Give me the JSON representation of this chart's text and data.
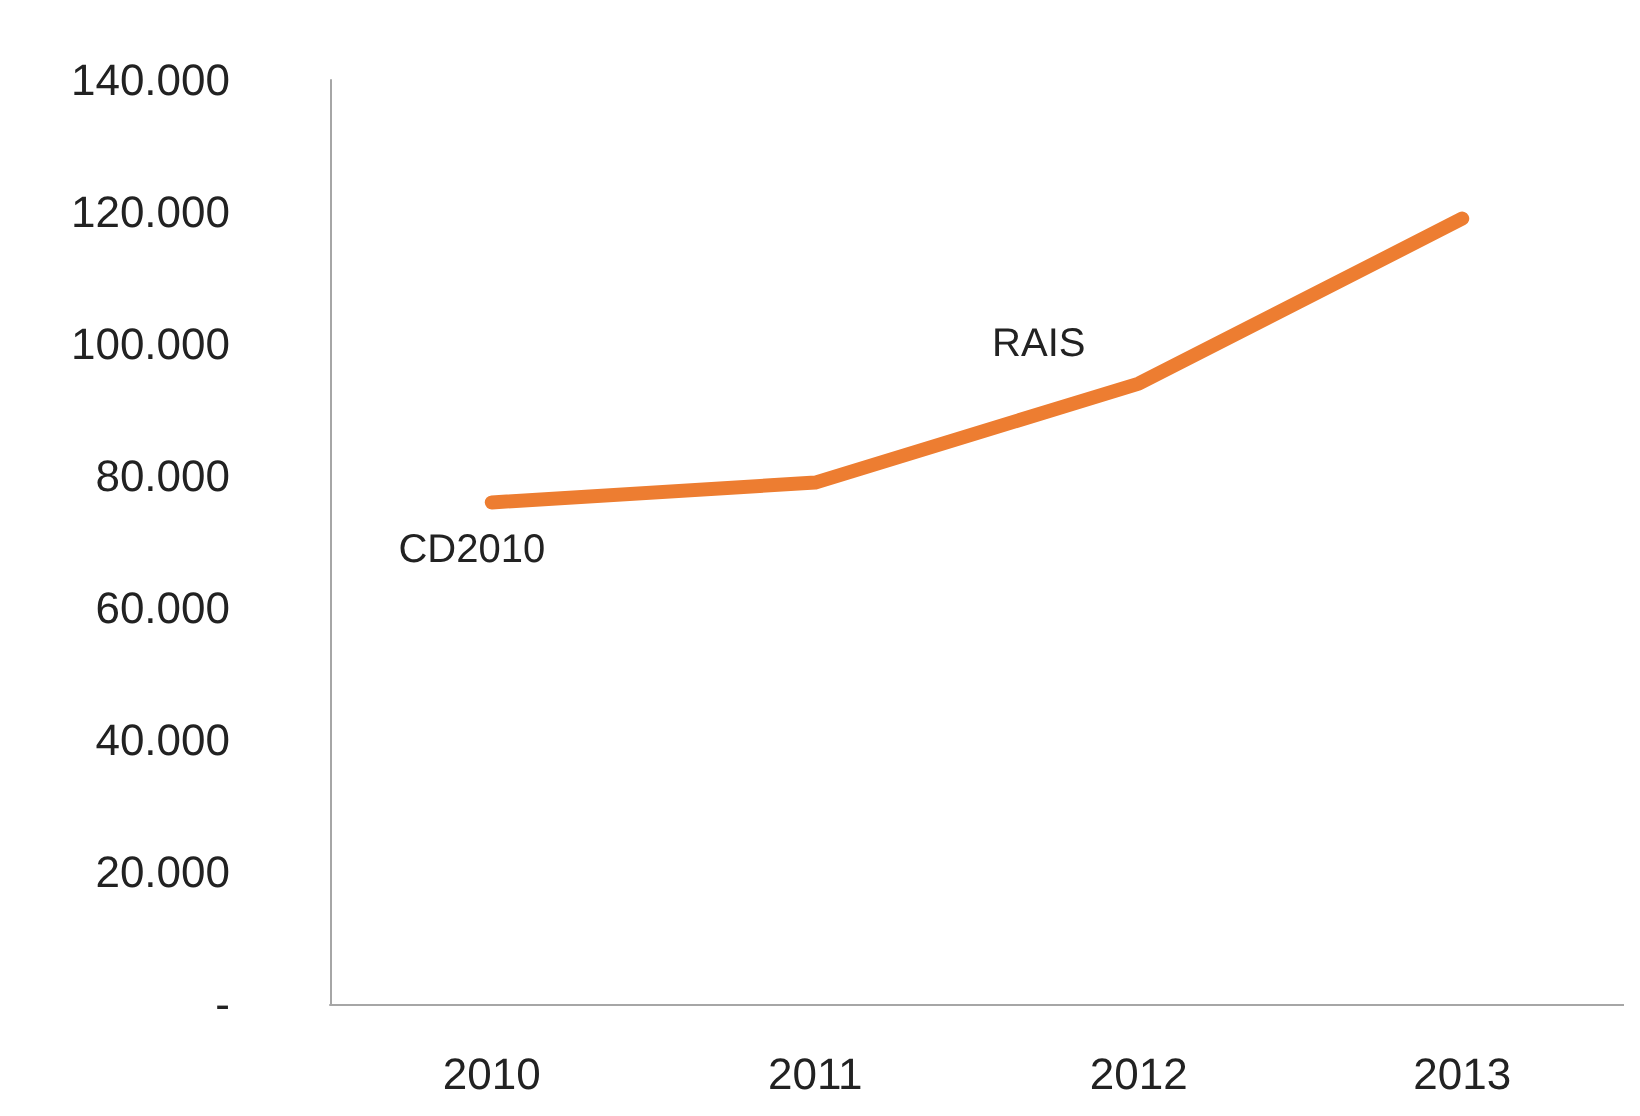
{
  "chart_data": {
    "type": "line",
    "categories": [
      "2010",
      "2011",
      "2012",
      "2013"
    ],
    "series": [
      {
        "color": "#ed7d31",
        "values": [
          76000,
          79000,
          94000,
          119000
        ]
      }
    ],
    "ylim": [
      0,
      140000
    ],
    "yticks": [
      {
        "value": 0,
        "label": "-"
      },
      {
        "value": 20000,
        "label": "20.000"
      },
      {
        "value": 40000,
        "label": "40.000"
      },
      {
        "value": 60000,
        "label": "60.000"
      },
      {
        "value": 80000,
        "label": "80.000"
      },
      {
        "value": 100000,
        "label": "100.000"
      },
      {
        "value": 120000,
        "label": "120.000"
      },
      {
        "value": 140000,
        "label": "140.000"
      }
    ],
    "annotations": [
      {
        "text": "CD2010",
        "x": "2010",
        "y": 76000
      },
      {
        "text": "RAIS",
        "x": "2012",
        "y": 94000
      }
    ],
    "grid": false,
    "marker": "none",
    "line_style": "solid"
  }
}
